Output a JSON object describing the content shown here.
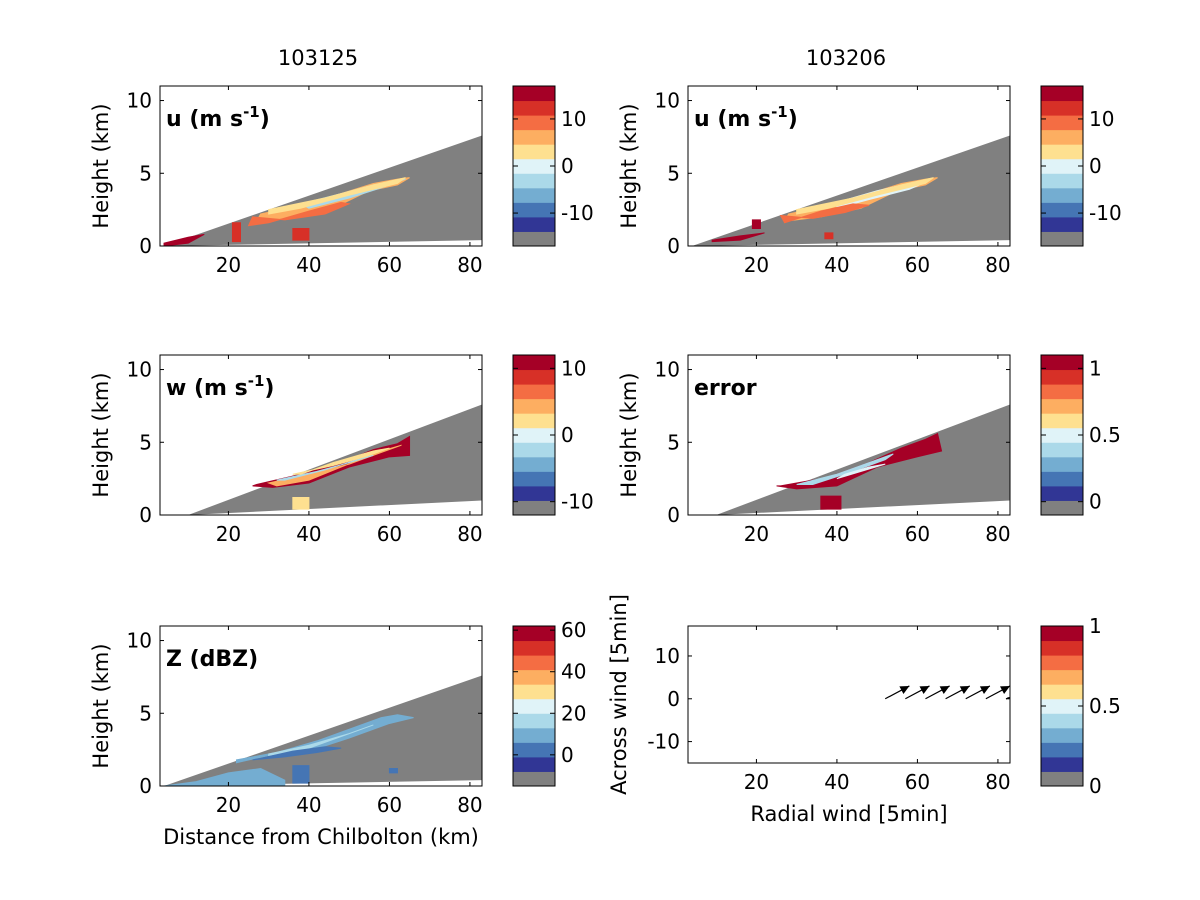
{
  "figure": {
    "column_titles": [
      "103125",
      "103206"
    ],
    "colors": {
      "no_data": "#808080",
      "palette": [
        "#313695",
        "#4575b4",
        "#74add1",
        "#abd9e9",
        "#e0f3f8",
        "#fee090",
        "#fdae61",
        "#f46d43",
        "#d73027",
        "#a50026"
      ],
      "arrow": "#000000"
    }
  },
  "chart_data": [
    {
      "type": "heatmap",
      "id": "u-103125",
      "column_title": "103125",
      "annotation_main": "u (m s",
      "annotation_sup": "-1",
      "annotation_tail": ")",
      "ylabel": "Height (km)",
      "xlabel": "",
      "xlim": [
        3,
        83
      ],
      "ylim": [
        0,
        11
      ],
      "xticks": [
        20,
        40,
        60,
        80
      ],
      "yticks": [
        0,
        5,
        10
      ],
      "scan_region": {
        "x_start": 4,
        "x_end": 83,
        "top_at_end": 7.6,
        "bottom_at_end": 0.4
      },
      "colorbar": {
        "range": [
          -17,
          17
        ],
        "ticks": [
          10,
          0,
          -10
        ],
        "tick_labels": [
          "10",
          "0",
          "-10"
        ]
      },
      "echo_features": [
        {
          "desc": "main echo layer",
          "x": [
            28,
            38,
            48,
            56,
            62,
            65,
            62,
            55,
            46,
            36,
            27
          ],
          "y": [
            2.2,
            2.8,
            3.6,
            4.3,
            4.6,
            4.7,
            4.2,
            3.8,
            2.6,
            2.0,
            1.7
          ],
          "fill": "#fdae61"
        },
        {
          "desc": "upper band",
          "x": [
            38,
            48,
            56,
            62,
            64,
            58,
            50,
            40
          ],
          "y": [
            2.9,
            3.6,
            4.2,
            4.5,
            4.6,
            4.0,
            3.3,
            2.6
          ],
          "fill": "#abd9e9"
        },
        {
          "desc": "upper band edge",
          "x": [
            30,
            44,
            56,
            64,
            62,
            50,
            38,
            30
          ],
          "y": [
            2.5,
            3.3,
            4.2,
            4.7,
            4.3,
            3.5,
            2.6,
            2.2
          ],
          "fill": "#fee090"
        },
        {
          "desc": "lower echo",
          "x": [
            26,
            34,
            44,
            50,
            48,
            40,
            30,
            25
          ],
          "y": [
            2.0,
            1.8,
            2.2,
            2.9,
            3.0,
            2.4,
            1.6,
            1.4
          ],
          "fill": "#f46d43"
        },
        {
          "desc": "low-level cell",
          "x": [
            36,
            40,
            40,
            36
          ],
          "y": [
            0.4,
            0.4,
            1.2,
            1.2
          ],
          "fill": "#d73027"
        },
        {
          "desc": "near-radar clutter",
          "x": [
            4,
            10,
            14,
            10,
            4
          ],
          "y": [
            0.0,
            0.2,
            0.8,
            0.6,
            0.2
          ],
          "fill": "#a50026"
        },
        {
          "desc": "column near 22km",
          "x": [
            21,
            23,
            23,
            21
          ],
          "y": [
            0.3,
            0.3,
            1.6,
            1.6
          ],
          "fill": "#d73027"
        }
      ]
    },
    {
      "type": "heatmap",
      "id": "u-103206",
      "column_title": "103206",
      "annotation_main": "u (m s",
      "annotation_sup": "-1",
      "annotation_tail": ")",
      "ylabel": "Height (km)",
      "xlabel": "",
      "xlim": [
        3,
        83
      ],
      "ylim": [
        0,
        11
      ],
      "xticks": [
        20,
        40,
        60,
        80
      ],
      "yticks": [
        0,
        5,
        10
      ],
      "scan_region": {
        "x_start": 4,
        "x_end": 83,
        "top_at_end": 7.6,
        "bottom_at_end": 0.4
      },
      "colorbar": {
        "range": [
          -17,
          17
        ],
        "ticks": [
          10,
          0,
          -10
        ],
        "tick_labels": [
          "10",
          "0",
          "-10"
        ]
      },
      "echo_features": [
        {
          "desc": "main echo layer",
          "x": [
            28,
            38,
            48,
            56,
            62,
            65,
            62,
            55,
            46,
            36,
            27
          ],
          "y": [
            2.2,
            2.8,
            3.6,
            4.3,
            4.6,
            4.7,
            4.2,
            3.8,
            2.6,
            2.0,
            1.7
          ],
          "fill": "#fdae61"
        },
        {
          "desc": "upper band",
          "x": [
            40,
            50,
            58,
            63,
            58,
            48,
            40
          ],
          "y": [
            3.0,
            3.8,
            4.3,
            4.5,
            3.9,
            3.2,
            2.6
          ],
          "fill": "#e0f3f8"
        },
        {
          "desc": "upper band edge",
          "x": [
            30,
            44,
            56,
            64,
            62,
            50,
            38,
            30
          ],
          "y": [
            2.5,
            3.3,
            4.2,
            4.7,
            4.3,
            3.5,
            2.6,
            2.2
          ],
          "fill": "#fee090"
        },
        {
          "desc": "lower echo",
          "x": [
            26,
            34,
            42,
            48,
            44,
            36,
            27
          ],
          "y": [
            2.1,
            1.9,
            2.3,
            2.8,
            2.9,
            2.4,
            1.6
          ],
          "fill": "#f46d43"
        },
        {
          "desc": "low-level cell",
          "x": [
            37,
            39,
            39,
            37
          ],
          "y": [
            0.5,
            0.5,
            0.9,
            0.9
          ],
          "fill": "#d73027"
        },
        {
          "desc": "near-radar clutter",
          "x": [
            9,
            16,
            22,
            16,
            9
          ],
          "y": [
            0.3,
            0.4,
            0.9,
            0.7,
            0.4
          ],
          "fill": "#a50026"
        },
        {
          "desc": "column near 20km",
          "x": [
            19,
            21,
            21,
            19
          ],
          "y": [
            1.2,
            1.2,
            1.8,
            1.8
          ],
          "fill": "#a50026"
        }
      ]
    },
    {
      "type": "heatmap",
      "id": "w-103125",
      "column_title": "",
      "annotation_main": "w (m s",
      "annotation_sup": "-1",
      "annotation_tail": ")",
      "ylabel": "Height (km)",
      "xlabel": "",
      "xlim": [
        3,
        83
      ],
      "ylim": [
        0,
        11
      ],
      "xticks": [
        20,
        40,
        60,
        80
      ],
      "yticks": [
        0,
        5,
        10
      ],
      "scan_region": {
        "x_start": 10,
        "x_end": 83,
        "top_at_end": 7.6,
        "bottom_at_end": 1.0
      },
      "colorbar": {
        "range": [
          -12,
          12
        ],
        "ticks": [
          10,
          0,
          -10
        ],
        "tick_labels": [
          "10",
          "0",
          "-10"
        ]
      },
      "echo_features": [
        {
          "desc": "main echo band",
          "x": [
            27,
            38,
            48,
            56,
            62,
            65,
            65,
            60,
            50,
            40,
            31,
            26
          ],
          "y": [
            2.1,
            2.8,
            3.6,
            4.5,
            4.9,
            5.4,
            4.1,
            4.0,
            3.3,
            2.2,
            1.9,
            2.0
          ],
          "fill": "#a50026"
        },
        {
          "desc": "inner band",
          "x": [
            30,
            40,
            50,
            58,
            63,
            58,
            48,
            40,
            32
          ],
          "y": [
            2.2,
            2.8,
            3.5,
            4.3,
            4.8,
            4.4,
            3.3,
            2.4,
            2.0
          ],
          "fill": "#fdae61"
        },
        {
          "desc": "inner band cool",
          "x": [
            32,
            42,
            50,
            56,
            52,
            44,
            34
          ],
          "y": [
            2.4,
            3.0,
            3.6,
            4.1,
            3.8,
            3.1,
            2.4
          ],
          "fill": "#abd9e9"
        },
        {
          "desc": "upper edge",
          "x": [
            36,
            46,
            54,
            60,
            56,
            46,
            38
          ],
          "y": [
            2.8,
            3.4,
            4.0,
            4.6,
            4.4,
            3.6,
            2.8
          ],
          "fill": "#fee090"
        },
        {
          "desc": "low-level cell",
          "x": [
            36,
            40,
            40,
            36
          ],
          "y": [
            0.4,
            0.4,
            1.2,
            1.2
          ],
          "fill": "#fee090"
        }
      ]
    },
    {
      "type": "heatmap",
      "id": "error-103206",
      "column_title": "",
      "annotation_main": "error",
      "annotation_sup": "",
      "annotation_tail": "",
      "ylabel": "Height (km)",
      "xlabel": "",
      "xlim": [
        3,
        83
      ],
      "ylim": [
        0,
        11
      ],
      "xticks": [
        20,
        40,
        60,
        80
      ],
      "yticks": [
        0,
        5,
        10
      ],
      "scan_region": {
        "x_start": 10,
        "x_end": 83,
        "top_at_end": 7.6,
        "bottom_at_end": 1.0
      },
      "colorbar": {
        "range": [
          -0.1,
          1.1
        ],
        "ticks": [
          1,
          0.5,
          0
        ],
        "tick_labels": [
          "1",
          "0.5",
          "0"
        ]
      },
      "echo_features": [
        {
          "desc": "main error band",
          "x": [
            26,
            38,
            48,
            56,
            62,
            65,
            66,
            60,
            50,
            40,
            30,
            25
          ],
          "y": [
            2.0,
            2.6,
            3.6,
            4.6,
            5.2,
            5.6,
            4.4,
            4.0,
            3.3,
            2.0,
            1.8,
            2.0
          ],
          "fill": "#a50026"
        },
        {
          "desc": "interior mottled",
          "x": [
            30,
            40,
            48,
            54,
            52,
            44,
            34
          ],
          "y": [
            2.1,
            2.8,
            3.6,
            4.2,
            3.8,
            3.0,
            2.1
          ],
          "fill": "#abd9e9"
        },
        {
          "desc": "interior core",
          "x": [
            40,
            46,
            52,
            48,
            42
          ],
          "y": [
            2.5,
            3.0,
            3.5,
            3.3,
            2.8
          ],
          "fill": "#e0f3f8"
        },
        {
          "desc": "low-level blob",
          "x": [
            36,
            41,
            41,
            36
          ],
          "y": [
            0.4,
            0.4,
            1.3,
            1.3
          ],
          "fill": "#a50026"
        }
      ]
    },
    {
      "type": "heatmap",
      "id": "z-103125",
      "column_title": "",
      "annotation_main": "Z (dBZ)",
      "annotation_sup": "",
      "annotation_tail": "",
      "ylabel": "Height (km)",
      "xlabel": "Distance from Chilbolton (km)",
      "xlim": [
        3,
        83
      ],
      "ylim": [
        0,
        11
      ],
      "xticks": [
        20,
        40,
        60,
        80
      ],
      "yticks": [
        0,
        5,
        10
      ],
      "scan_region": {
        "x_start": 4,
        "x_end": 83,
        "top_at_end": 7.6,
        "bottom_at_end": 0.4
      },
      "colorbar": {
        "range": [
          -15,
          62
        ],
        "ticks": [
          60,
          40,
          20,
          0
        ],
        "tick_labels": [
          "60",
          "40",
          "20",
          "0"
        ]
      },
      "echo_features": [
        {
          "desc": "main echo layer",
          "x": [
            22,
            32,
            42,
            52,
            58,
            62,
            66,
            60,
            50,
            40,
            30,
            22
          ],
          "y": [
            1.8,
            2.3,
            3.1,
            4.1,
            4.7,
            4.9,
            4.7,
            4.3,
            3.3,
            2.4,
            2.1,
            1.6
          ],
          "fill": "#74add1"
        },
        {
          "desc": "echo core",
          "x": [
            30,
            40,
            50,
            56,
            50,
            40,
            30
          ],
          "y": [
            2.2,
            2.8,
            3.6,
            4.2,
            3.6,
            2.6,
            2.1
          ],
          "fill": "#abd9e9"
        },
        {
          "desc": "lower echo",
          "x": [
            26,
            34,
            42,
            48,
            44,
            36,
            28
          ],
          "y": [
            1.8,
            2.0,
            2.3,
            2.6,
            2.7,
            2.4,
            1.9
          ],
          "fill": "#4575b4"
        },
        {
          "desc": "precipitation shaft",
          "x": [
            36,
            40,
            40,
            36
          ],
          "y": [
            0.2,
            0.2,
            1.4,
            1.4
          ],
          "fill": "#4575b4"
        },
        {
          "desc": "boundary-layer echo",
          "x": [
            4,
            12,
            20,
            28,
            34,
            34,
            20,
            4
          ],
          "y": [
            0.0,
            0.3,
            0.9,
            1.2,
            0.4,
            0.0,
            0.0,
            0.0
          ],
          "fill": "#74add1"
        },
        {
          "desc": "trace echo",
          "x": [
            60,
            62,
            62,
            60
          ],
          "y": [
            0.9,
            0.9,
            1.2,
            1.2
          ],
          "fill": "#4575b4"
        }
      ]
    },
    {
      "type": "vector",
      "id": "wind-vectors",
      "column_title": "",
      "annotation_main": "",
      "annotation_sup": "",
      "annotation_tail": "",
      "ylabel": "Across wind [5min]",
      "xlabel": "Radial wind [5min]",
      "xlim": [
        3,
        83
      ],
      "ylim": [
        -15,
        17
      ],
      "xticks": [
        20,
        40,
        60,
        80
      ],
      "yticks": [
        -10,
        0,
        10
      ],
      "colorbar": {
        "range": [
          0,
          1
        ],
        "ticks": [
          1,
          0.5,
          0
        ],
        "tick_labels": [
          "1",
          "0.5",
          "0"
        ]
      },
      "vectors": [
        {
          "x": 52,
          "y": 0,
          "u": 6,
          "v": 3
        },
        {
          "x": 57,
          "y": 0,
          "u": 6,
          "v": 3
        },
        {
          "x": 62,
          "y": 0,
          "u": 6,
          "v": 3
        },
        {
          "x": 67,
          "y": 0,
          "u": 6,
          "v": 3
        },
        {
          "x": 72,
          "y": 0,
          "u": 6,
          "v": 3
        },
        {
          "x": 77,
          "y": 0,
          "u": 6,
          "v": 3
        },
        {
          "x": 82,
          "y": 0,
          "u": 1,
          "v": 0.3
        }
      ]
    }
  ]
}
